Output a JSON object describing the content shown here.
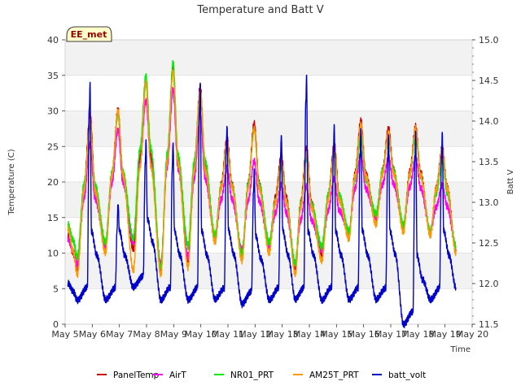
{
  "chart_data": {
    "type": "line",
    "title": "Temperature and Batt V",
    "xlabel": "Time",
    "ylabel": "Temperature (C)",
    "y2label": "Batt V",
    "annotation": "EE_met",
    "xlim": [
      5,
      20
    ],
    "ylim": [
      0,
      40
    ],
    "y2lim": [
      11.5,
      15.0
    ],
    "x_ticks": [
      5,
      6,
      7,
      8,
      9,
      10,
      11,
      12,
      13,
      14,
      15,
      16,
      17,
      18,
      19,
      20
    ],
    "x_tick_labels": [
      "May 5",
      "May 6",
      "May 7",
      "May 8",
      "May 9",
      "May 10",
      "May 11",
      "May 12",
      "May 13",
      "May 14",
      "May 15",
      "May 16",
      "May 17",
      "May 18",
      "May 19",
      "May 20"
    ],
    "y_ticks": [
      0,
      5,
      10,
      15,
      20,
      25,
      30,
      35,
      40
    ],
    "y2_ticks": [
      "11.5",
      "12.0",
      "12.5",
      "13.0",
      "13.5",
      "14.0",
      "14.5",
      "15.0"
    ],
    "daily_peak_day": [
      5.92,
      6.95,
      7.98,
      8.98,
      9.98,
      10.97,
      11.97,
      12.97,
      13.9,
      14.92,
      15.9,
      16.92,
      17.92,
      18.9
    ],
    "series": [
      {
        "name": "PanelTemp",
        "color": "#cc0000",
        "axis": "left",
        "start": 12.5,
        "end": 10.5,
        "min": [
          7.5,
          10.5,
          10.5,
          7.5,
          8.5,
          11.5,
          9.5,
          10.5,
          7.5,
          9.5,
          12.0,
          14.5,
          13.5,
          12.5
        ],
        "max": [
          29.5,
          30.2,
          34.0,
          36.0,
          33.5,
          26.2,
          28.3,
          23.8,
          24.8,
          25.3,
          28.6,
          27.6,
          27.8,
          24.8
        ]
      },
      {
        "name": "AirT",
        "color": "#ff00ff",
        "axis": "left",
        "start": 12.0,
        "end": 11.0,
        "min": [
          8.5,
          11.0,
          11.5,
          8.5,
          9.5,
          12.0,
          10.5,
          11.0,
          8.5,
          10.5,
          13.0,
          15.0,
          14.0,
          13.0
        ],
        "max": [
          25.3,
          27.3,
          31.5,
          33.0,
          29.5,
          22.0,
          23.0,
          19.5,
          19.5,
          20.5,
          24.0,
          23.5,
          23.5,
          19.5
        ]
      },
      {
        "name": "NR01_PRT",
        "color": "#00ee00",
        "axis": "left",
        "start": 14.0,
        "end": 11.0,
        "min": [
          9.5,
          11.5,
          12.0,
          8.0,
          11.0,
          12.5,
          10.0,
          11.5,
          8.5,
          11.0,
          13.0,
          15.5,
          14.0,
          13.0
        ],
        "max": [
          28.0,
          29.5,
          35.0,
          36.8,
          32.8,
          25.0,
          27.5,
          22.0,
          23.5,
          24.0,
          26.5,
          26.5,
          26.5,
          23.0
        ]
      },
      {
        "name": "AM25T_PRT",
        "color": "#ff9900",
        "axis": "left",
        "start": 13.5,
        "end": 10.0,
        "min": [
          7.0,
          10.0,
          7.5,
          7.0,
          8.0,
          11.5,
          9.0,
          10.0,
          7.0,
          9.0,
          12.0,
          14.0,
          13.0,
          12.5
        ],
        "max": [
          28.5,
          30.0,
          34.0,
          35.5,
          33.0,
          25.5,
          27.5,
          23.0,
          24.0,
          24.5,
          28.0,
          27.0,
          27.5,
          24.5
        ]
      },
      {
        "name": "batt_volt",
        "color": "#0000cc",
        "axis": "right",
        "start": 12.0,
        "end": 11.95,
        "min": [
          11.8,
          11.8,
          11.95,
          11.8,
          11.8,
          11.8,
          11.75,
          11.8,
          11.8,
          11.8,
          11.8,
          11.8,
          11.5,
          11.8
        ],
        "max": [
          14.45,
          13.0,
          13.75,
          13.75,
          14.45,
          13.95,
          13.4,
          13.85,
          14.55,
          13.95,
          13.9,
          13.85,
          13.85,
          13.85
        ]
      }
    ],
    "legend": [
      "PanelTemp",
      "AirT",
      "NR01_PRT",
      "AM25T_PRT",
      "batt_volt"
    ],
    "legend_position": "bottom-center",
    "grid": true
  }
}
